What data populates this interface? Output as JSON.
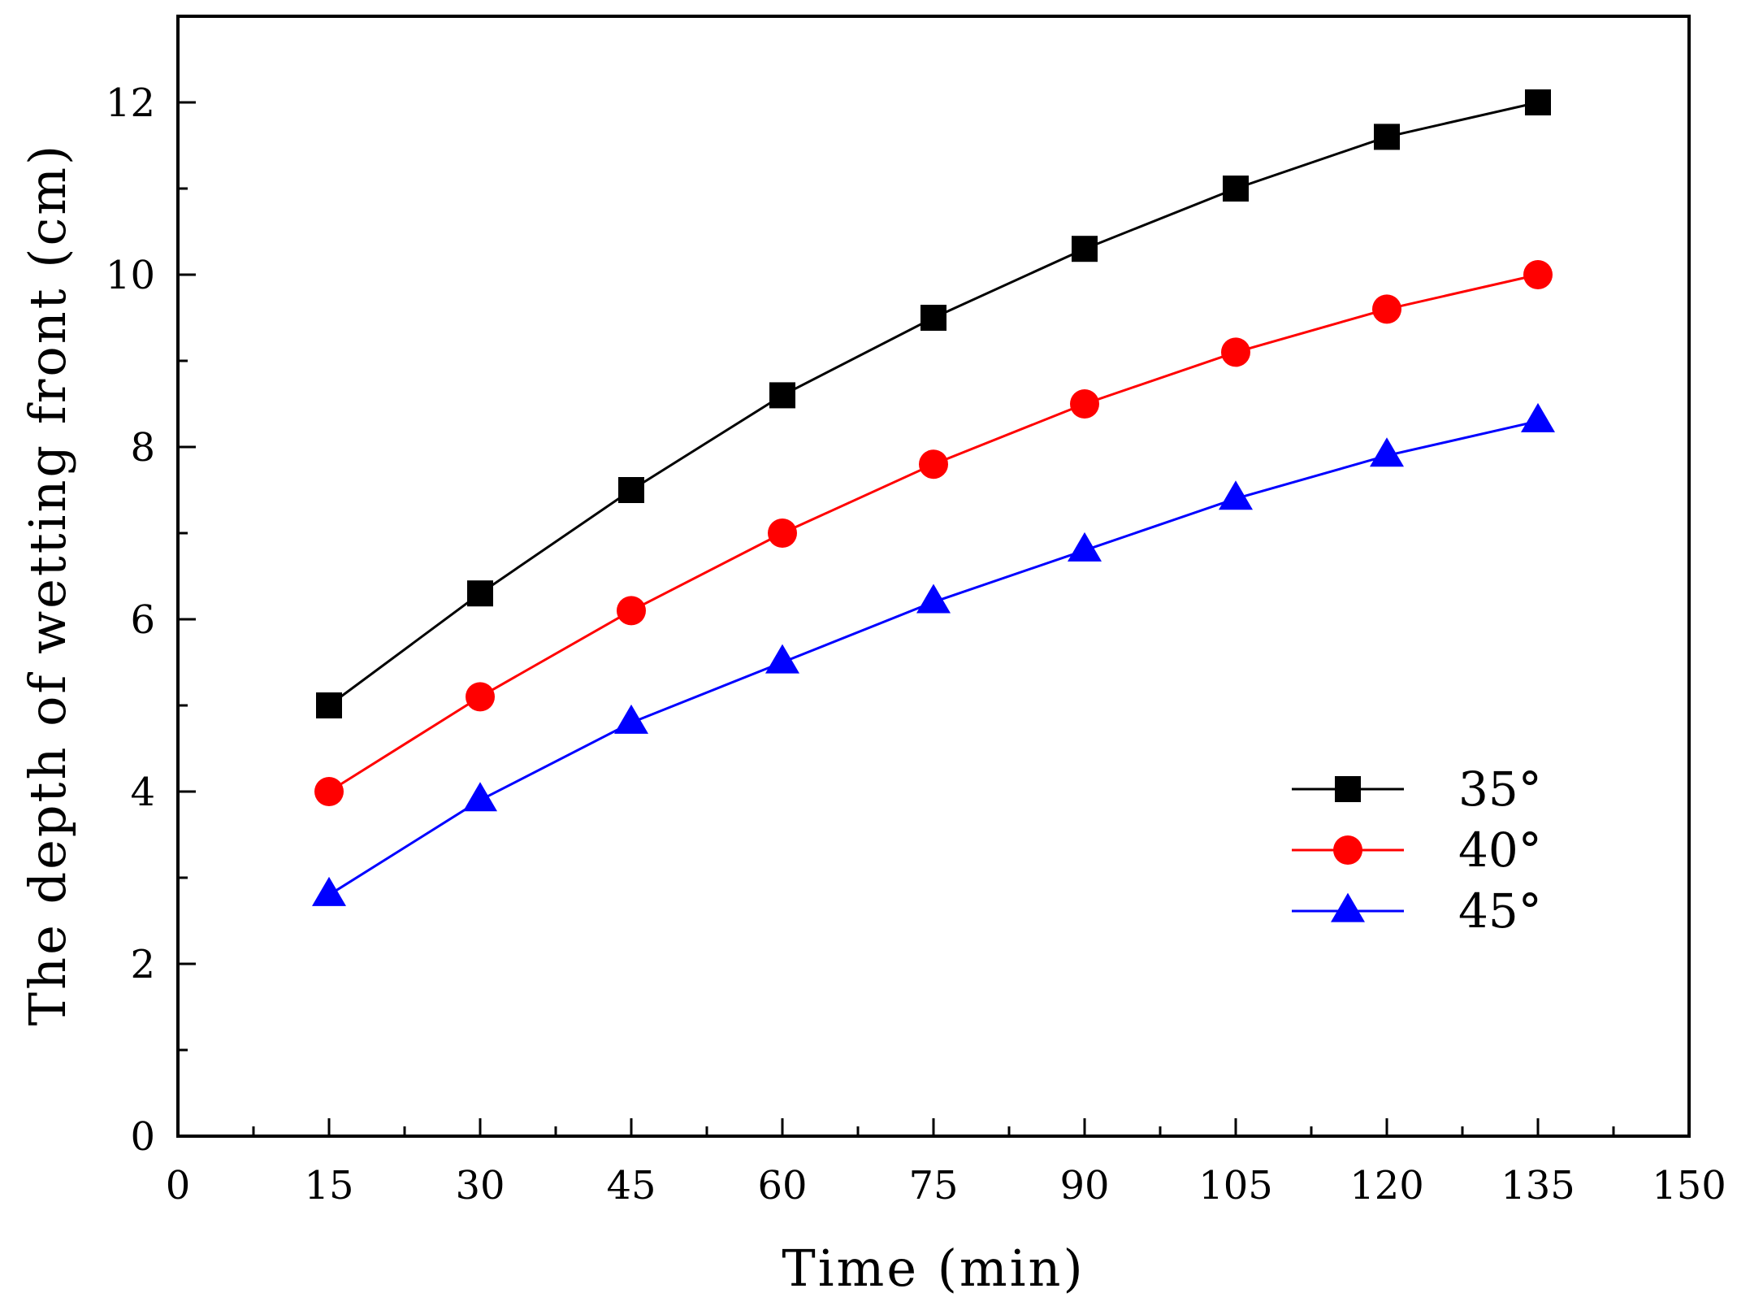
{
  "chart_data": {
    "type": "line",
    "title": "",
    "xlabel": "Time (min)",
    "ylabel": "The depth of wetting front (cm)",
    "xlim": [
      0,
      150
    ],
    "ylim": [
      0,
      13
    ],
    "x_ticks": [
      0,
      15,
      30,
      45,
      60,
      75,
      90,
      105,
      120,
      135,
      150
    ],
    "y_ticks": [
      0,
      2,
      4,
      6,
      8,
      10,
      12
    ],
    "x_tick_labels": [
      "0",
      "15",
      "30",
      "45",
      "60",
      "75",
      "90",
      "105",
      "120",
      "135",
      "150"
    ],
    "y_tick_labels": [
      "0",
      "2",
      "4",
      "6",
      "8",
      "10",
      "12"
    ],
    "x": [
      15,
      30,
      45,
      60,
      75,
      90,
      105,
      120,
      135
    ],
    "grid": false,
    "legend_position": "bottom-right",
    "series": [
      {
        "name": "35°",
        "marker": "square",
        "color": "#000000",
        "values": [
          5.0,
          6.3,
          7.5,
          8.6,
          9.5,
          10.3,
          11.0,
          11.6,
          12.0
        ]
      },
      {
        "name": "40°",
        "marker": "circle",
        "color": "#ff0000",
        "values": [
          4.0,
          5.1,
          6.1,
          7.0,
          7.8,
          8.5,
          9.1,
          9.6,
          10.0
        ]
      },
      {
        "name": "45°",
        "marker": "triangle",
        "color": "#0000ff",
        "values": [
          2.8,
          3.9,
          4.8,
          5.5,
          6.2,
          6.8,
          7.4,
          7.9,
          8.3
        ]
      }
    ]
  }
}
